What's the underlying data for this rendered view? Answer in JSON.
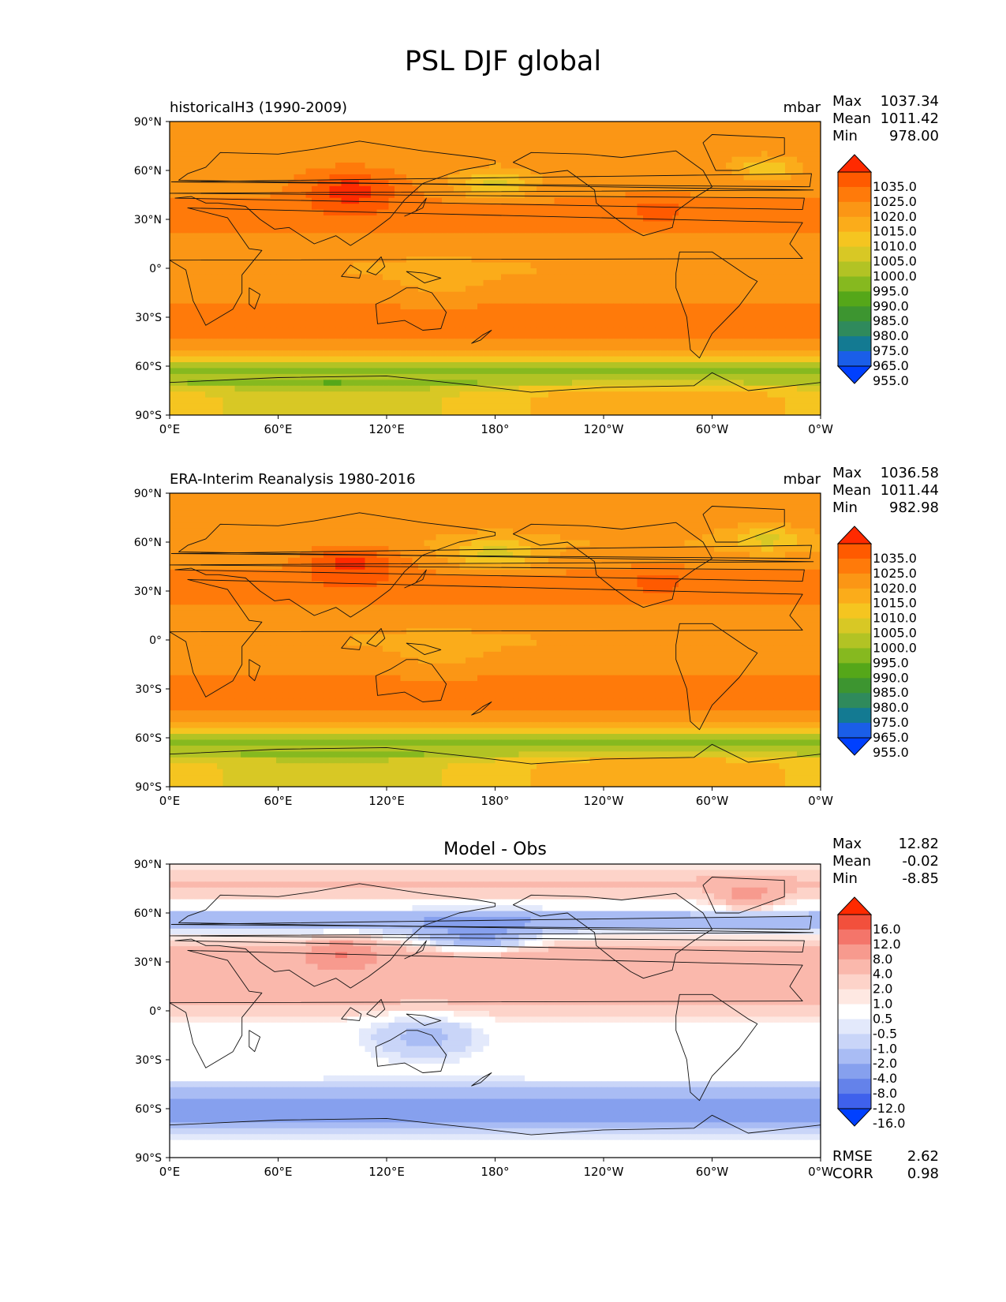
{
  "figure_title": "PSL DJF global",
  "axes": {
    "lat_ticks": [
      "90°N",
      "60°N",
      "30°N",
      "0°",
      "30°S",
      "60°S",
      "90°S"
    ],
    "lon_ticks": [
      "0°E",
      "60°E",
      "120°E",
      "180°",
      "120°W",
      "60°W",
      "0°W"
    ]
  },
  "panels": [
    {
      "title_left": "historicalH3 (1990-2009)",
      "title_center": "",
      "units": "mbar",
      "stats": [
        {
          "label": "Max",
          "value": "1037.34"
        },
        {
          "label": "Mean",
          "value": "1011.42"
        },
        {
          "label": "Min",
          "value": "978.00"
        }
      ],
      "field": "model",
      "colorbar": "abs",
      "extra": []
    },
    {
      "title_left": "ERA-Interim Reanalysis 1980-2016",
      "title_center": "",
      "units": "mbar",
      "stats": [
        {
          "label": "Max",
          "value": "1036.58"
        },
        {
          "label": "Mean",
          "value": "1011.44"
        },
        {
          "label": "Min",
          "value": "982.98"
        }
      ],
      "field": "obs",
      "colorbar": "abs",
      "extra": []
    },
    {
      "title_left": "",
      "title_center": "Model - Obs",
      "units": "",
      "stats": [
        {
          "label": "Max",
          "value": "12.82"
        },
        {
          "label": "Mean",
          "value": "-0.02"
        },
        {
          "label": "Min",
          "value": "-8.85"
        }
      ],
      "field": "diff",
      "colorbar": "diff",
      "extra": [
        {
          "label": "RMSE",
          "value": "2.62"
        },
        {
          "label": "CORR",
          "value": "0.98"
        }
      ]
    }
  ],
  "colorbars": {
    "abs": {
      "labels": [
        "1035.0",
        "1025.0",
        "1020.0",
        "1015.0",
        "1010.0",
        "1005.0",
        "1000.0",
        "995.0",
        "990.0",
        "985.0",
        "980.0",
        "975.0",
        "965.0",
        "955.0"
      ],
      "colors": [
        "#ff2a00",
        "#ff5a00",
        "#ff7a0a",
        "#fb9615",
        "#fbac1a",
        "#f5c520",
        "#d8c825",
        "#b2c324",
        "#86b91f",
        "#55a719",
        "#3d9530",
        "#2f8a5c",
        "#137a92",
        "#1a5ee8",
        "#0040ff"
      ]
    },
    "diff": {
      "labels": [
        "16.0",
        "12.0",
        "8.0",
        "4.0",
        "2.0",
        "1.0",
        "0.5",
        "-0.5",
        "-1.0",
        "-2.0",
        "-4.0",
        "-8.0",
        "-12.0",
        "-16.0"
      ],
      "colors": [
        "#ff2a00",
        "#f2503c",
        "#f4756a",
        "#f79a8e",
        "#fab8ac",
        "#fdd3c9",
        "#fee8e2",
        "#ffffff",
        "#e3e9fb",
        "#c9d5f8",
        "#a9bcf4",
        "#86a0ee",
        "#6482ea",
        "#3f61ec",
        "#0040ff"
      ]
    }
  },
  "colors": {
    "abs_levels": [
      "#2f8a5c",
      "#3d9530",
      "#55a719",
      "#86b91f",
      "#b2c324",
      "#d8c825",
      "#f5c520",
      "#fbac1a",
      "#fb9615",
      "#ff7a0a",
      "#ff5a00",
      "#ff2a00"
    ],
    "diff_levels": [
      "#3f61ec",
      "#6482ea",
      "#86a0ee",
      "#a9bcf4",
      "#c9d5f8",
      "#e3e9fb",
      "#ffffff",
      "#fee8e2",
      "#fdd3c9",
      "#fab8ac",
      "#f79a8e",
      "#f4756a",
      "#f2503c"
    ]
  }
}
